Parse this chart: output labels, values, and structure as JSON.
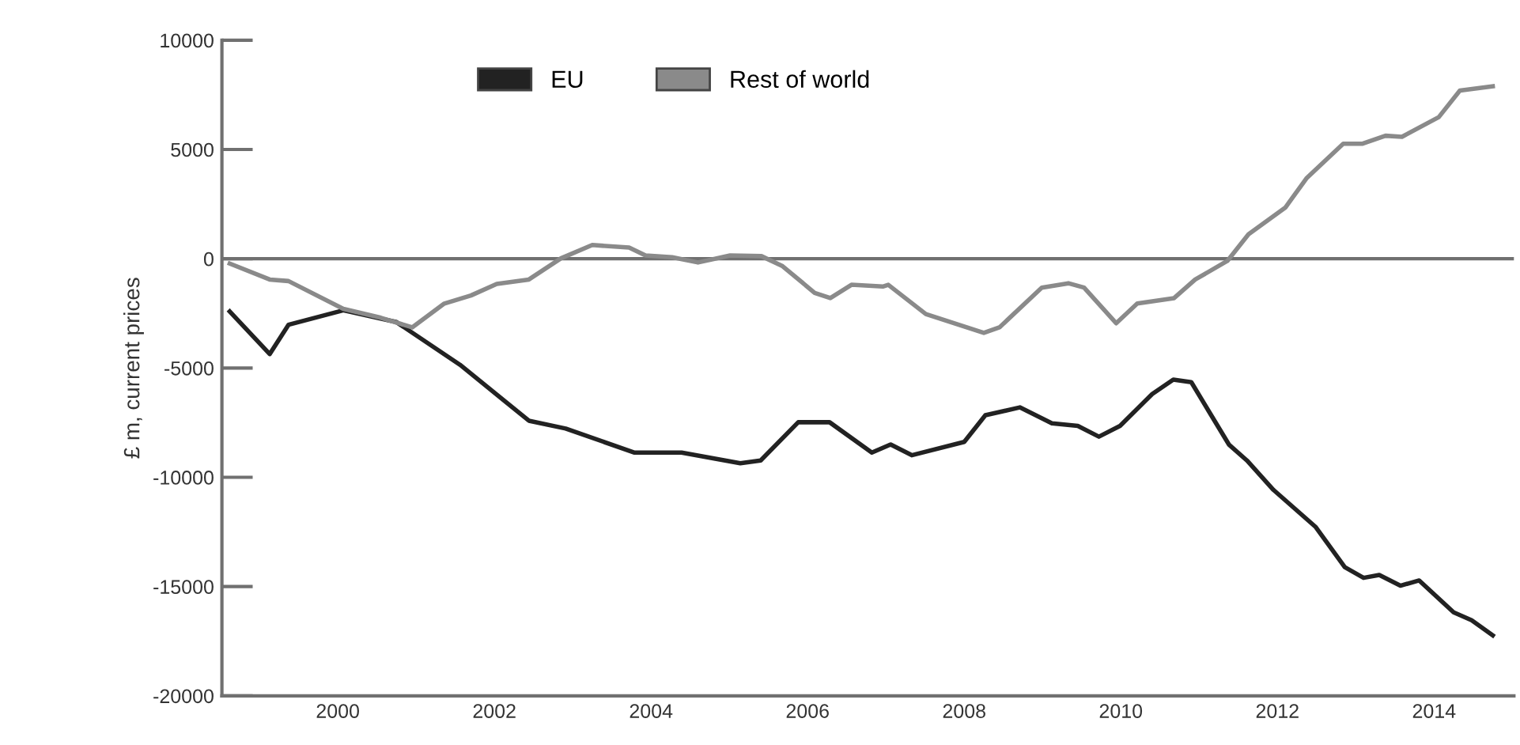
{
  "chart_data": {
    "type": "line",
    "ylabel": "£ m, current prices",
    "xlim": [
      1998.52,
      2015.02
    ],
    "xticks": [
      2000,
      2002,
      2004,
      2006,
      2008,
      2010,
      2012,
      2014
    ],
    "ylim": [
      -20000,
      10000
    ],
    "yticks": [
      -20000,
      -15000,
      -10000,
      -5000,
      0,
      5000,
      10000
    ],
    "grid": false,
    "legend": "top",
    "line_style": "solid",
    "ref_lines": [
      {
        "axis": "y",
        "value": 0,
        "color": "#707070"
      }
    ],
    "series": [
      {
        "name": "EU",
        "color": "#222222",
        "x": [
          1998.62,
          1999.13,
          1999.37,
          2000.07,
          2000.75,
          2001.56,
          2002.44,
          2002.91,
          2003.79,
          2004.39,
          2005.14,
          2005.4,
          2005.88,
          2006.28,
          2006.82,
          2007.06,
          2007.33,
          2008.0,
          2008.27,
          2008.71,
          2009.12,
          2009.45,
          2009.72,
          2009.99,
          2010.4,
          2010.67,
          2010.9,
          2011.38,
          2011.61,
          2011.95,
          2012.49,
          2012.86,
          2013.1,
          2013.3,
          2013.57,
          2013.81,
          2014.25,
          2014.48,
          2014.75
        ],
        "values": [
          -2410,
          -4360,
          -3020,
          -2360,
          -2900,
          -4850,
          -7410,
          -7770,
          -8870,
          -8870,
          -9360,
          -9230,
          -7480,
          -7480,
          -8870,
          -8500,
          -8990,
          -8380,
          -7160,
          -6800,
          -7530,
          -7650,
          -8140,
          -7650,
          -6190,
          -5530,
          -5650,
          -8500,
          -9230,
          -10580,
          -12280,
          -14110,
          -14600,
          -14470,
          -14960,
          -14720,
          -16180,
          -16540,
          -17230
        ]
      },
      {
        "name": "Rest of world",
        "color": "#8a8a8a",
        "x": [
          1998.62,
          1999.13,
          1999.37,
          2000.07,
          2000.55,
          2000.95,
          2001.36,
          2001.7,
          2002.03,
          2002.44,
          2002.85,
          2003.25,
          2003.72,
          2003.93,
          2004.27,
          2004.6,
          2005.01,
          2005.41,
          2005.68,
          2006.09,
          2006.29,
          2006.56,
          2006.96,
          2007.03,
          2007.51,
          2008.25,
          2008.45,
          2008.99,
          2009.33,
          2009.53,
          2009.94,
          2010.21,
          2010.68,
          2010.95,
          2011.36,
          2011.63,
          2012.1,
          2012.37,
          2012.84,
          2013.08,
          2013.38,
          2013.59,
          2014.06,
          2014.33,
          2014.75
        ],
        "values": [
          -220,
          -950,
          -1020,
          -2290,
          -2700,
          -3140,
          -2050,
          -1680,
          -1150,
          -950,
          20,
          630,
          510,
          150,
          70,
          -170,
          150,
          120,
          -340,
          -1560,
          -1800,
          -1190,
          -1270,
          -1190,
          -2530,
          -3390,
          -3140,
          -1320,
          -1120,
          -1320,
          -2950,
          -2050,
          -1800,
          -950,
          -100,
          1120,
          2340,
          3680,
          5260,
          5260,
          5630,
          5580,
          6480,
          7700,
          7890
        ]
      }
    ]
  }
}
